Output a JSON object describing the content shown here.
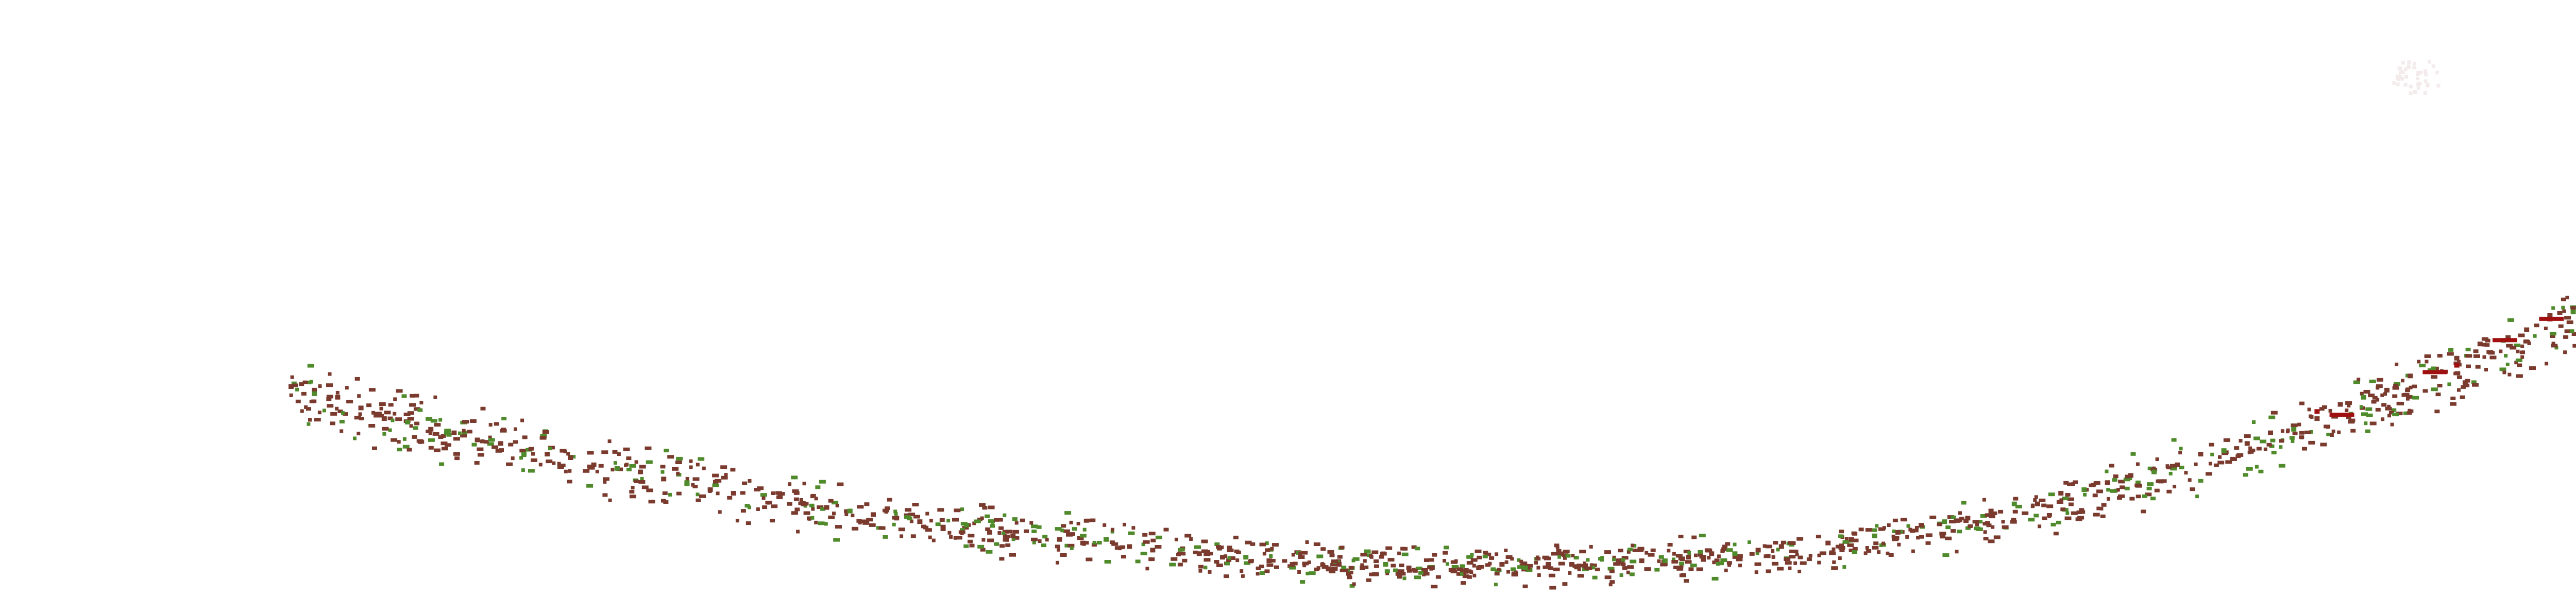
{
  "chart_data": {
    "type": "scatter",
    "title": "",
    "xlabel": "",
    "ylabel": "",
    "xlim": [
      0,
      100
    ],
    "ylim": [
      0,
      100
    ],
    "grid": false,
    "legend": "none",
    "colors": {
      "brown": "#7a3b2e",
      "green": "#4f8a2b",
      "red": "#a01010",
      "faint": "#f3eaea"
    },
    "trend": {
      "x": [
        0,
        5,
        10,
        15,
        20,
        25,
        30,
        35,
        40,
        45,
        50,
        55,
        60,
        65,
        70,
        75,
        80,
        85,
        90,
        95,
        100
      ],
      "y": [
        59,
        49,
        42,
        35,
        29,
        23,
        19,
        16,
        12,
        10,
        9,
        10,
        11,
        14,
        18,
        25,
        34,
        44,
        56,
        70,
        83
      ]
    },
    "series": [
      {
        "color": "brown",
        "points": [
          [
            0,
            60
          ],
          [
            1,
            59
          ],
          [
            2,
            57
          ],
          [
            3,
            54
          ],
          [
            4,
            51
          ],
          [
            6,
            48
          ],
          [
            7,
            47
          ],
          [
            8,
            45
          ],
          [
            9,
            44
          ],
          [
            11,
            41
          ],
          [
            12,
            40
          ],
          [
            13,
            38
          ],
          [
            15,
            36
          ],
          [
            16,
            34
          ],
          [
            18,
            31
          ],
          [
            19,
            30
          ],
          [
            21,
            29
          ],
          [
            22,
            27
          ],
          [
            23,
            26
          ],
          [
            25,
            24
          ],
          [
            26,
            23
          ],
          [
            27,
            22
          ],
          [
            28,
            20
          ],
          [
            30,
            19
          ],
          [
            31,
            18
          ],
          [
            33,
            17
          ],
          [
            34,
            16
          ],
          [
            36,
            15
          ],
          [
            37,
            14
          ],
          [
            39,
            13
          ],
          [
            40,
            12
          ],
          [
            42,
            11
          ],
          [
            43,
            10
          ],
          [
            45,
            10
          ],
          [
            46,
            9
          ],
          [
            48,
            9
          ],
          [
            49,
            9
          ],
          [
            51,
            9
          ],
          [
            52,
            10
          ],
          [
            54,
            10
          ],
          [
            55,
            10
          ],
          [
            57,
            11
          ],
          [
            58,
            11
          ],
          [
            60,
            12
          ],
          [
            61,
            13
          ],
          [
            63,
            14
          ],
          [
            64,
            15
          ],
          [
            66,
            16
          ],
          [
            67,
            17
          ],
          [
            69,
            19
          ],
          [
            70,
            21
          ],
          [
            72,
            23
          ],
          [
            73,
            25
          ],
          [
            75,
            27
          ],
          [
            76,
            30
          ],
          [
            78,
            33
          ],
          [
            79,
            35
          ],
          [
            81,
            38
          ],
          [
            82,
            41
          ],
          [
            84,
            44
          ],
          [
            85,
            47
          ],
          [
            87,
            51
          ],
          [
            88,
            55
          ],
          [
            90,
            59
          ],
          [
            91,
            63
          ],
          [
            93,
            68
          ],
          [
            94,
            72
          ],
          [
            96,
            76
          ],
          [
            97,
            80
          ],
          [
            98,
            82
          ]
        ]
      },
      {
        "color": "green",
        "points": [
          [
            1,
            58
          ],
          [
            5,
            50
          ],
          [
            10,
            41
          ],
          [
            14,
            37
          ],
          [
            17,
            33
          ],
          [
            24,
            25
          ],
          [
            29,
            21
          ],
          [
            35,
            17
          ],
          [
            41,
            12
          ],
          [
            47,
            10
          ],
          [
            53,
            9
          ],
          [
            59,
            11
          ],
          [
            62,
            13
          ],
          [
            68,
            18
          ],
          [
            71,
            22
          ],
          [
            74,
            27
          ],
          [
            77,
            31
          ],
          [
            80,
            36
          ],
          [
            83,
            42
          ],
          [
            86,
            48
          ],
          [
            89,
            57
          ],
          [
            92,
            65
          ],
          [
            95,
            73
          ],
          [
            98,
            81
          ]
        ]
      },
      {
        "color": "red",
        "points": [
          [
            87,
            53
          ],
          [
            93,
            66
          ],
          [
            97,
            79
          ],
          [
            100,
            82
          ]
        ]
      }
    ]
  }
}
